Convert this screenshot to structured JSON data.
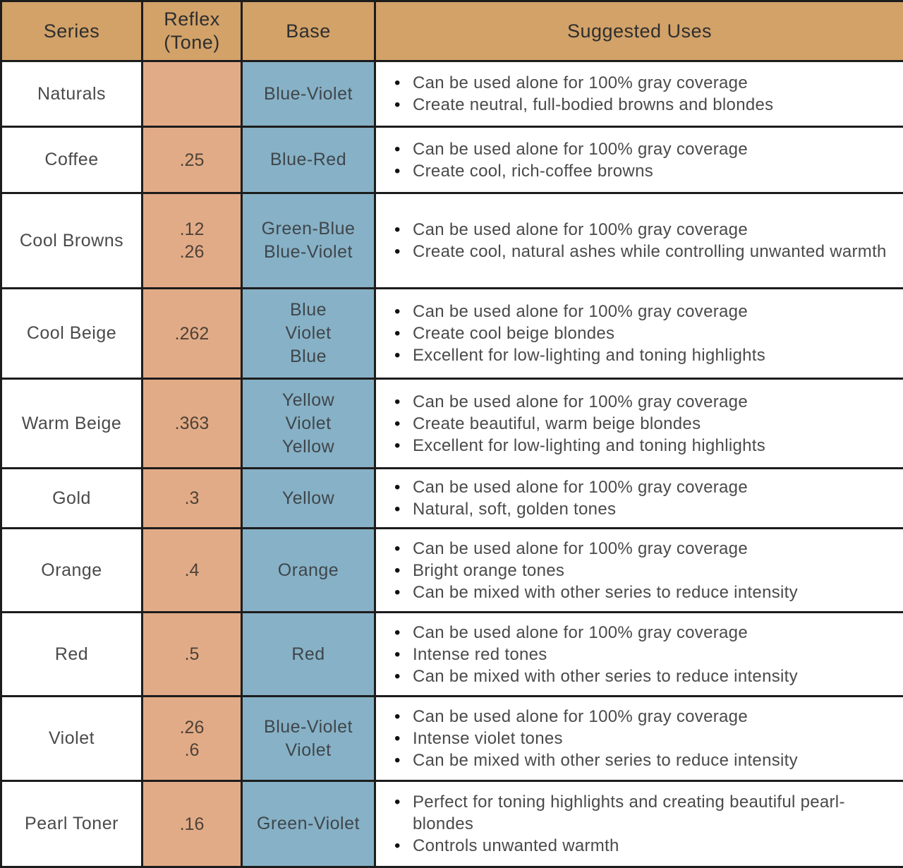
{
  "table": {
    "columns": [
      "Series",
      "Reflex (Tone)",
      "Base",
      "Suggested Uses"
    ],
    "rows": [
      {
        "series": "Naturals",
        "reflex": [],
        "base": [
          "Blue-Violet"
        ],
        "uses": [
          "Can be used alone for 100% gray coverage",
          "Create neutral, full-bodied browns and blondes"
        ]
      },
      {
        "series": "Coffee",
        "reflex": [
          ".25"
        ],
        "base": [
          "Blue-Red"
        ],
        "uses": [
          "Can be used alone for 100% gray coverage",
          "Create cool, rich-coffee browns"
        ]
      },
      {
        "series": "Cool Browns",
        "reflex": [
          ".12",
          ".26"
        ],
        "base": [
          "Green-Blue",
          "Blue-Violet"
        ],
        "uses": [
          "Can be used alone for 100% gray coverage",
          "Create cool, natural ashes while controlling unwanted warmth"
        ]
      },
      {
        "series": "Cool Beige",
        "reflex": [
          ".262"
        ],
        "base": [
          "Blue",
          "Violet",
          "Blue"
        ],
        "uses": [
          "Can be used alone for 100% gray coverage",
          "Create cool beige blondes",
          "Excellent for low-lighting and toning highlights"
        ]
      },
      {
        "series": "Warm Beige",
        "reflex": [
          ".363"
        ],
        "base": [
          "Yellow",
          "Violet",
          "Yellow"
        ],
        "uses": [
          "Can be used alone for 100% gray coverage",
          "Create beautiful, warm beige blondes",
          "Excellent for low-lighting and toning highlights"
        ]
      },
      {
        "series": "Gold",
        "reflex": [
          ".3"
        ],
        "base": [
          "Yellow"
        ],
        "uses": [
          "Can be used alone for 100% gray coverage",
          "Natural, soft, golden tones"
        ]
      },
      {
        "series": "Orange",
        "reflex": [
          ".4"
        ],
        "base": [
          "Orange"
        ],
        "uses": [
          "Can be used alone for 100% gray coverage",
          "Bright orange tones",
          "Can be mixed with other series to reduce intensity"
        ]
      },
      {
        "series": "Red",
        "reflex": [
          ".5"
        ],
        "base": [
          "Red"
        ],
        "uses": [
          "Can be used alone for 100% gray coverage",
          "Intense red tones",
          "Can be mixed with other series to reduce intensity"
        ]
      },
      {
        "series": "Violet",
        "reflex": [
          ".26",
          ".6"
        ],
        "base": [
          "Blue-Violet",
          "Violet"
        ],
        "uses": [
          "Can be used alone for 100% gray coverage",
          "Intense violet tones",
          "Can be mixed with other series to reduce intensity"
        ]
      },
      {
        "series": "Pearl Toner",
        "reflex": [
          ".16"
        ],
        "base": [
          "Green-Violet"
        ],
        "uses": [
          "Perfect for toning highlights and creating beautiful pearl-blondes",
          "Controls unwanted warmth"
        ]
      }
    ]
  },
  "colors": {
    "header_bg": "#D2A269",
    "reflex_bg": "#E2AB87",
    "base_bg": "#87B1C6",
    "border": "#1C1C1C",
    "header_text": "#2E2E2E",
    "body_text": "#4A4A4A"
  }
}
